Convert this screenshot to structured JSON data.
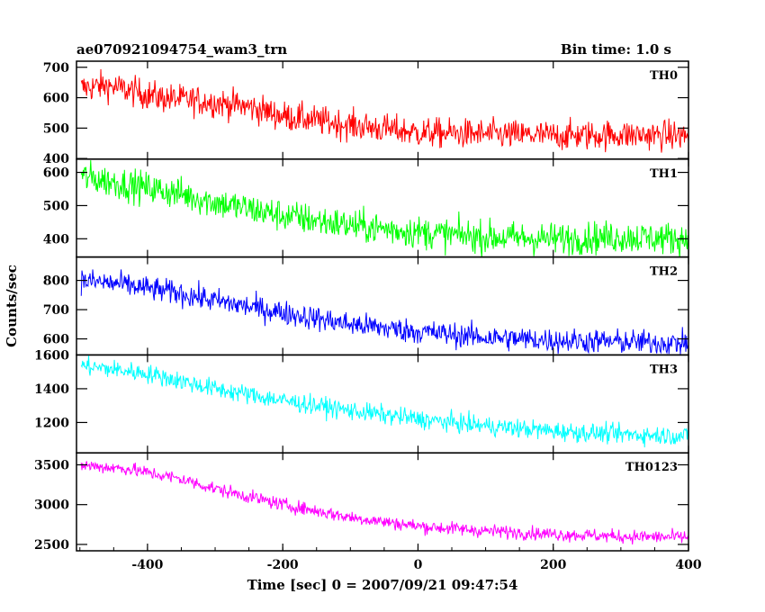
{
  "chart": {
    "title_left": "ae070921094754_wam3_trn",
    "title_right": "Bin time: 1.0 s",
    "xlabel": "Time [sec] 0 = 2007/09/21 09:47:54",
    "ylabel": "Counts/sec"
  },
  "chart_data": [
    {
      "type": "line",
      "series": [
        {
          "name": "TH0",
          "color": "#ff0000",
          "points": [
            [
              -505,
              630
            ],
            [
              -460,
              640
            ],
            [
              -380,
              600
            ],
            [
              -300,
              585
            ],
            [
              -250,
              570
            ],
            [
              -200,
              540
            ],
            [
              -100,
              510
            ],
            [
              0,
              485
            ],
            [
              100,
              480
            ],
            [
              200,
              475
            ],
            [
              300,
              478
            ],
            [
              400,
              475
            ]
          ]
        }
      ],
      "noise": 35,
      "xlim": [
        -505,
        400
      ],
      "ylim": [
        398,
        720
      ],
      "yticks": [
        400,
        500,
        600,
        700
      ]
    },
    {
      "type": "line",
      "series": [
        {
          "name": "TH1",
          "color": "#00ff00",
          "points": [
            [
              -505,
              590
            ],
            [
              -420,
              560
            ],
            [
              -350,
              535
            ],
            [
              -300,
              510
            ],
            [
              -200,
              470
            ],
            [
              -100,
              440
            ],
            [
              0,
              420
            ],
            [
              100,
              405
            ],
            [
              200,
              400
            ],
            [
              300,
              405
            ],
            [
              400,
              400
            ]
          ]
        }
      ],
      "noise": 35,
      "xlim": [
        -505,
        400
      ],
      "ylim": [
        345,
        640
      ],
      "yticks": [
        400,
        500,
        600
      ]
    },
    {
      "type": "line",
      "series": [
        {
          "name": "TH2",
          "color": "#0000ff",
          "points": [
            [
              -505,
              800
            ],
            [
              -450,
              790
            ],
            [
              -350,
              755
            ],
            [
              -300,
              730
            ],
            [
              -200,
              690
            ],
            [
              -100,
              650
            ],
            [
              0,
              625
            ],
            [
              100,
              605
            ],
            [
              200,
              595
            ],
            [
              300,
              590
            ],
            [
              400,
              585
            ]
          ]
        }
      ],
      "noise": 30,
      "xlim": [
        -505,
        400
      ],
      "ylim": [
        545,
        880
      ],
      "yticks": [
        600,
        700,
        800
      ]
    },
    {
      "type": "line",
      "series": [
        {
          "name": "TH3",
          "color": "#00ffff",
          "points": [
            [
              -505,
              1540
            ],
            [
              -400,
              1490
            ],
            [
              -300,
              1400
            ],
            [
              -200,
              1330
            ],
            [
              -100,
              1270
            ],
            [
              0,
              1220
            ],
            [
              100,
              1180
            ],
            [
              200,
              1150
            ],
            [
              300,
              1130
            ],
            [
              400,
              1120
            ]
          ]
        }
      ],
      "noise": 40,
      "xlim": [
        -505,
        400
      ],
      "ylim": [
        1020,
        1600
      ],
      "yticks": [
        1200,
        1400,
        1600
      ]
    },
    {
      "type": "line",
      "series": [
        {
          "name": "TH0123",
          "color": "#ff00ff",
          "points": [
            [
              -505,
              3500
            ],
            [
              -430,
              3450
            ],
            [
              -350,
              3320
            ],
            [
              -300,
              3200
            ],
            [
              -200,
              3000
            ],
            [
              -100,
              2840
            ],
            [
              0,
              2730
            ],
            [
              100,
              2670
            ],
            [
              200,
              2630
            ],
            [
              300,
              2600
            ],
            [
              400,
              2590
            ]
          ]
        }
      ],
      "noise": 60,
      "xlim": [
        -505,
        400
      ],
      "ylim": [
        2420,
        3650
      ],
      "yticks": [
        2500,
        3000,
        3500
      ]
    }
  ],
  "x_axis": {
    "ticks": [
      -400,
      -200,
      0,
      200,
      400
    ],
    "minor_step": 50,
    "range": [
      -505,
      400
    ]
  }
}
